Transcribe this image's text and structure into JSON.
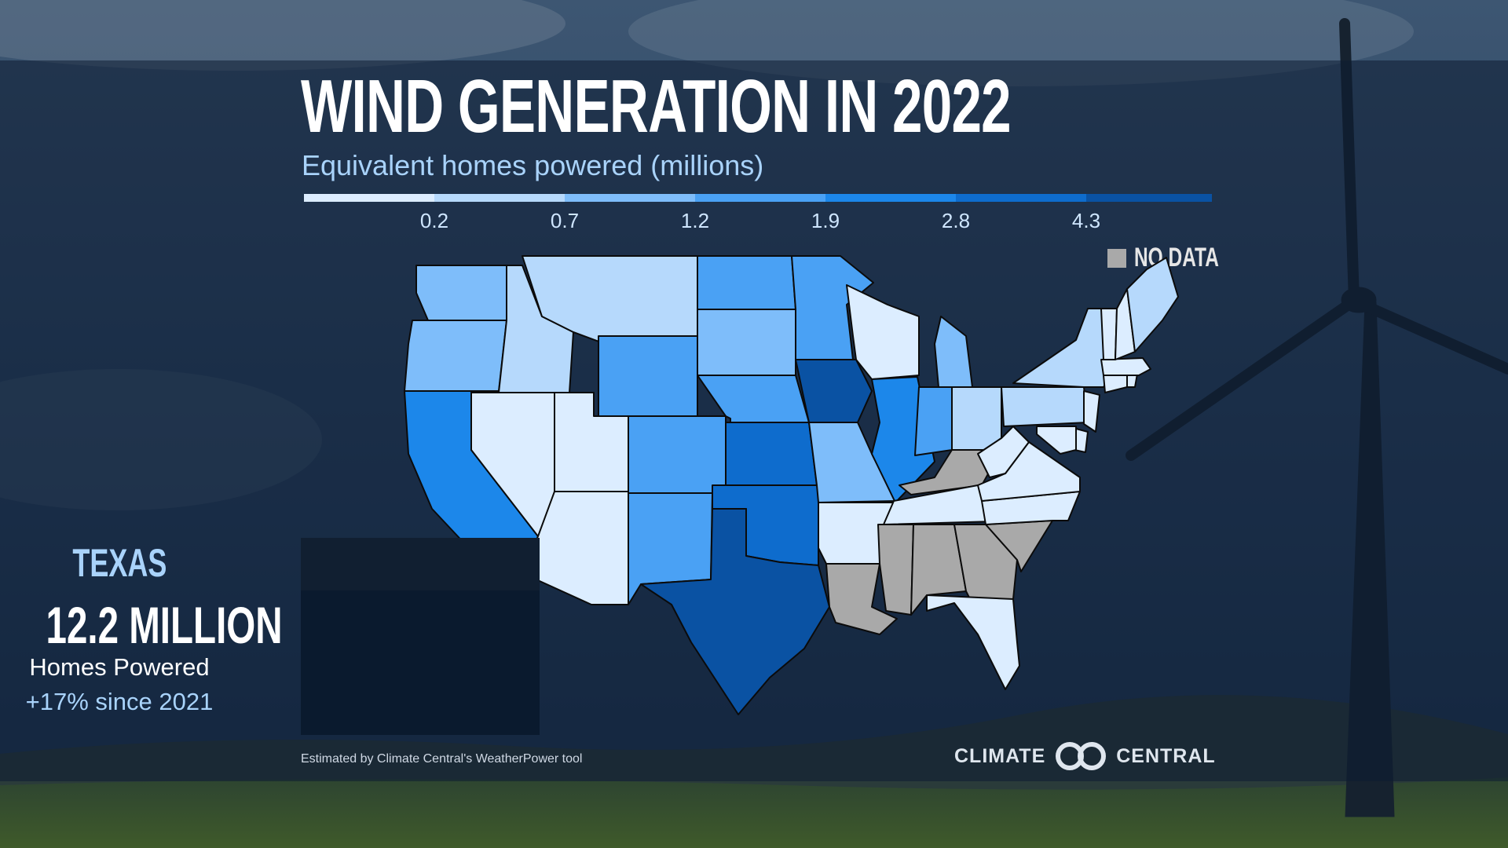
{
  "title": "WIND GENERATION IN 2022",
  "subtitle": "Equivalent homes powered (millions)",
  "legend": {
    "bins": [
      {
        "color": "#dcedff"
      },
      {
        "color": "#b6d9fc"
      },
      {
        "color": "#7ebdfa"
      },
      {
        "color": "#4aa1f4"
      },
      {
        "color": "#1c87ea"
      },
      {
        "color": "#0e6ccd"
      },
      {
        "color": "#0a52a3"
      }
    ],
    "ticks": [
      "0.2",
      "0.7",
      "1.2",
      "1.9",
      "2.8",
      "4.3"
    ],
    "no_data_label": "NO DATA",
    "no_data_color": "#a9a9a9"
  },
  "map": {
    "states": [
      {
        "abbr": "WA",
        "bin": 2
      },
      {
        "abbr": "OR",
        "bin": 2
      },
      {
        "abbr": "CA",
        "bin": 4
      },
      {
        "abbr": "ID",
        "bin": 1
      },
      {
        "abbr": "NV",
        "bin": 0
      },
      {
        "abbr": "UT",
        "bin": 0
      },
      {
        "abbr": "AZ",
        "bin": 0
      },
      {
        "abbr": "MT",
        "bin": 1
      },
      {
        "abbr": "WY",
        "bin": 3
      },
      {
        "abbr": "CO",
        "bin": 3
      },
      {
        "abbr": "NM",
        "bin": 3
      },
      {
        "abbr": "ND",
        "bin": 3
      },
      {
        "abbr": "SD",
        "bin": 2
      },
      {
        "abbr": "NE",
        "bin": 3
      },
      {
        "abbr": "KS",
        "bin": 5
      },
      {
        "abbr": "OK",
        "bin": 5
      },
      {
        "abbr": "TX",
        "bin": 6
      },
      {
        "abbr": "MN",
        "bin": 3
      },
      {
        "abbr": "IA",
        "bin": 6
      },
      {
        "abbr": "MO",
        "bin": 2
      },
      {
        "abbr": "AR",
        "bin": 0
      },
      {
        "abbr": "LA",
        "bin": null
      },
      {
        "abbr": "WI",
        "bin": 0
      },
      {
        "abbr": "IL",
        "bin": 4
      },
      {
        "abbr": "MI",
        "bin": 2
      },
      {
        "abbr": "IN",
        "bin": 3
      },
      {
        "abbr": "OH",
        "bin": 1
      },
      {
        "abbr": "KY",
        "bin": null
      },
      {
        "abbr": "TN",
        "bin": 0
      },
      {
        "abbr": "MS",
        "bin": null
      },
      {
        "abbr": "AL",
        "bin": null
      },
      {
        "abbr": "GA",
        "bin": null
      },
      {
        "abbr": "FL",
        "bin": 0
      },
      {
        "abbr": "SC",
        "bin": null
      },
      {
        "abbr": "NC",
        "bin": 0
      },
      {
        "abbr": "VA",
        "bin": 0
      },
      {
        "abbr": "WV",
        "bin": 0
      },
      {
        "abbr": "PA",
        "bin": 1
      },
      {
        "abbr": "NY",
        "bin": 1
      },
      {
        "abbr": "NJ",
        "bin": 0
      },
      {
        "abbr": "DE",
        "bin": 0
      },
      {
        "abbr": "MD",
        "bin": 0
      },
      {
        "abbr": "CT",
        "bin": 0
      },
      {
        "abbr": "RI",
        "bin": 0
      },
      {
        "abbr": "MA",
        "bin": 0
      },
      {
        "abbr": "VT",
        "bin": 0
      },
      {
        "abbr": "NH",
        "bin": 0
      },
      {
        "abbr": "ME",
        "bin": 1
      }
    ]
  },
  "callout": {
    "state": "TEXAS",
    "value": "12.2 MILLION",
    "units": "Homes Powered",
    "change": "+17% since 2021"
  },
  "footer": {
    "source": "Estimated by Climate Central's WeatherPower tool",
    "logo_left": "CLIMATE",
    "logo_right": "CENTRAL"
  }
}
